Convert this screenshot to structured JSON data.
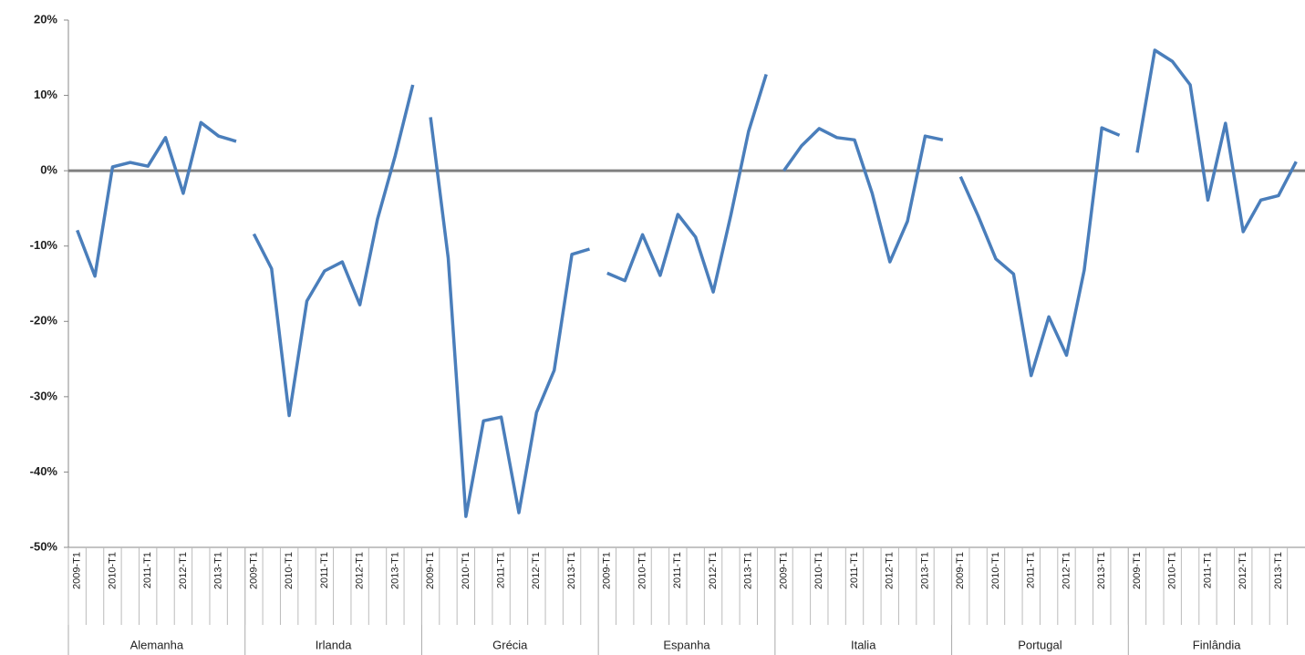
{
  "chart_data": {
    "type": "line",
    "color": "#4a7ebb",
    "ylim": [
      -50,
      20
    ],
    "yticks": [
      {
        "value": 20,
        "label": "20%"
      },
      {
        "value": 10,
        "label": "10%"
      },
      {
        "value": 0,
        "label": "0%"
      },
      {
        "value": -10,
        "label": "-10%"
      },
      {
        "value": -20,
        "label": "-20%"
      },
      {
        "value": -30,
        "label": "-30%"
      },
      {
        "value": -40,
        "label": "-40%"
      },
      {
        "value": -50,
        "label": "-50%"
      }
    ],
    "groups": [
      {
        "name": "Alemanha",
        "categories": [
          "2009-T1",
          null,
          "2010-T1",
          null,
          "2011-T1",
          null,
          "2012-T1",
          null,
          "2013-T1",
          null
        ],
        "values": [
          -7.9,
          -14,
          0.5,
          1.1,
          0.6,
          4.4,
          -3,
          6.4,
          4.6,
          3.9
        ]
      },
      {
        "name": "Irlanda",
        "categories": [
          "2009-T1",
          null,
          "2010-T1",
          null,
          "2011-T1",
          null,
          "2012-T1",
          null,
          "2013-T1",
          null
        ],
        "values": [
          -8.4,
          -13,
          -32.5,
          -17.3,
          -13.3,
          -12.1,
          -17.8,
          -6.4,
          2,
          11.4
        ]
      },
      {
        "name": "Grécia",
        "categories": [
          "2009-T1",
          null,
          "2010-T1",
          null,
          "2011-T1",
          null,
          "2012-T1",
          null,
          "2013-T1",
          null
        ],
        "values": [
          7.1,
          -11.6,
          -45.9,
          -33.2,
          -32.7,
          -45.4,
          -32.1,
          -26.5,
          -11.1,
          -10.4
        ]
      },
      {
        "name": "Espanha",
        "categories": [
          "2009-T1",
          null,
          "2010-T1",
          null,
          "2011-T1",
          null,
          "2012-T1",
          null,
          "2013-T1",
          null
        ],
        "values": [
          -13.6,
          -14.6,
          -8.5,
          -13.9,
          -5.8,
          -8.8,
          -16.1,
          -5.9,
          5.2,
          12.8
        ]
      },
      {
        "name": "Italia",
        "categories": [
          "2009-T1",
          null,
          "2010-T1",
          null,
          "2011-T1",
          null,
          "2012-T1",
          null,
          "2013-T1",
          null
        ],
        "values": [
          0,
          3.3,
          5.6,
          4.4,
          4.1,
          -3,
          -12.1,
          -6.7,
          4.6,
          4.1
        ]
      },
      {
        "name": "Portugal",
        "categories": [
          "2009-T1",
          null,
          "2010-T1",
          null,
          "2011-T1",
          null,
          "2012-T1",
          null,
          "2013-T1",
          null
        ],
        "values": [
          -0.8,
          -6,
          -11.7,
          -13.7,
          -27.2,
          -19.4,
          -24.5,
          -13.2,
          5.7,
          4.7
        ]
      },
      {
        "name": "Finlândia",
        "categories": [
          "2009-T1",
          null,
          "2010-T1",
          null,
          "2011-T1",
          null,
          "2012-T1",
          null,
          "2013-T1",
          null
        ],
        "values": [
          2.4,
          16,
          14.5,
          11.4,
          -3.9,
          6.3,
          -8.1,
          -3.9,
          -3.3,
          1.2
        ]
      }
    ]
  }
}
